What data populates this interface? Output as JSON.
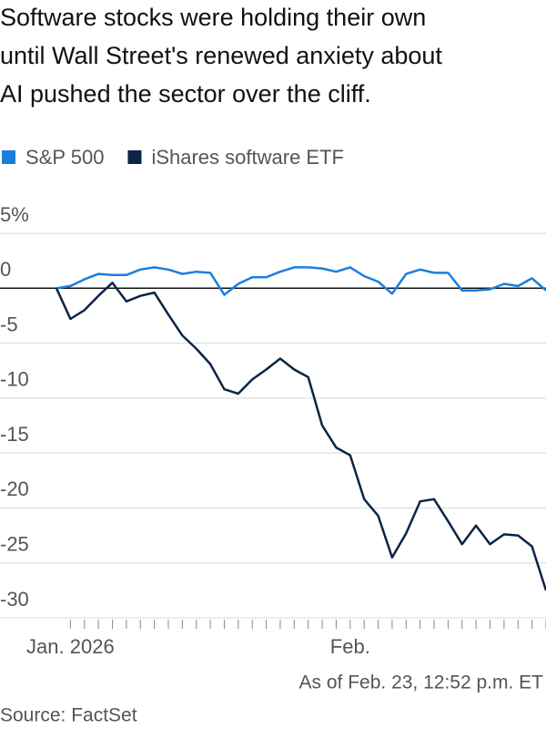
{
  "chart_data": {
    "type": "line",
    "title_lines": [
      "Software stocks were holding their own",
      "until Wall Street's renewed anxiety about",
      "AI pushed the sector over the cliff."
    ],
    "categories": [
      null,
      "Jan. 2026",
      null,
      null,
      null,
      null,
      null,
      null,
      null,
      null,
      null,
      null,
      null,
      null,
      null,
      null,
      null,
      null,
      null,
      null,
      null,
      "Feb.",
      null,
      null,
      null,
      null,
      null,
      null,
      null,
      null,
      null,
      null,
      null,
      null,
      null,
      null
    ],
    "series": [
      {
        "name": "S&P 500",
        "color": "#1a7fdc",
        "values": [
          0,
          0.2,
          0.8,
          1.3,
          1.2,
          1.2,
          1.7,
          1.9,
          1.7,
          1.3,
          1.5,
          1.4,
          -0.6,
          0.4,
          1.0,
          1.0,
          1.5,
          1.9,
          1.9,
          1.8,
          1.5,
          1.9,
          1.1,
          0.6,
          -0.5,
          1.3,
          1.7,
          1.4,
          1.4,
          -0.2,
          -0.2,
          -0.1,
          0.4,
          0.2,
          0.9,
          -0.2
        ]
      },
      {
        "name": "iShares software ETF",
        "color": "#0b2545",
        "values": [
          0,
          -2.8,
          -2.0,
          -0.7,
          0.5,
          -1.2,
          -0.7,
          -0.4,
          -2.4,
          -4.3,
          -5.5,
          -6.9,
          -9.2,
          -9.6,
          -8.3,
          -7.4,
          -6.4,
          -7.4,
          -8.1,
          -12.5,
          -14.5,
          -15.2,
          -19.2,
          -20.7,
          -24.5,
          -22.3,
          -19.4,
          -19.2,
          -21.2,
          -23.3,
          -21.6,
          -23.3,
          -22.4,
          -22.5,
          -23.5,
          -27.5
        ]
      }
    ],
    "ylim": [
      -30,
      5
    ],
    "yticks": [
      {
        "value": 5,
        "label": "5%"
      },
      0,
      -5,
      -10,
      -15,
      -20,
      -25,
      -30
    ],
    "grid": true,
    "note": "As of Feb. 23, 12:52 p.m. ET",
    "source": "Source: FactSet"
  }
}
